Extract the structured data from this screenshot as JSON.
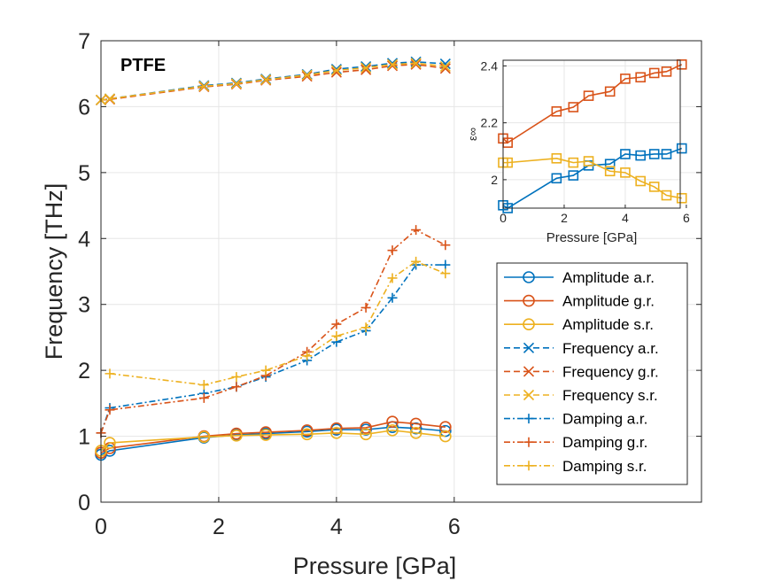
{
  "colors": {
    "series": [
      "#0072BD",
      "#D95319",
      "#EDB120"
    ],
    "grid": "#e6e6e6",
    "axis": "#262626"
  },
  "chart_data": [
    {
      "type": "line",
      "title": "PTFE",
      "xlabel": "Pressure [GPa]",
      "ylabel": "Frequency [THz]",
      "xlim": [
        0,
        10.2
      ],
      "ylim": [
        0,
        7
      ],
      "xticks": [
        0,
        2,
        4,
        6
      ],
      "yticks": [
        0,
        1,
        2,
        3,
        4,
        5,
        6,
        7
      ],
      "grid": true,
      "legend_position": "bottom-right",
      "series": [
        {
          "name": "Amplitude a.r.",
          "color_index": 0,
          "style": "solid",
          "marker": "circle",
          "x": [
            0,
            0.15,
            1.75,
            2.3,
            2.8,
            3.5,
            4.0,
            4.5,
            4.95,
            5.35,
            5.85
          ],
          "y": [
            0.72,
            0.78,
            0.98,
            1.02,
            1.04,
            1.07,
            1.1,
            1.1,
            1.14,
            1.12,
            1.08
          ]
        },
        {
          "name": "Amplitude g.r.",
          "color_index": 1,
          "style": "solid",
          "marker": "circle",
          "x": [
            0,
            0.15,
            1.75,
            2.3,
            2.8,
            3.5,
            4.0,
            4.5,
            4.95,
            5.35,
            5.85
          ],
          "y": [
            0.75,
            0.82,
            1.0,
            1.04,
            1.06,
            1.09,
            1.12,
            1.13,
            1.22,
            1.19,
            1.14
          ]
        },
        {
          "name": "Amplitude s.r.",
          "color_index": 2,
          "style": "solid",
          "marker": "circle",
          "x": [
            0,
            0.15,
            1.75,
            2.3,
            2.8,
            3.5,
            4.0,
            4.5,
            4.95,
            5.35,
            5.85
          ],
          "y": [
            0.78,
            0.9,
            0.99,
            1.01,
            1.02,
            1.03,
            1.05,
            1.03,
            1.09,
            1.05,
            1.0
          ]
        },
        {
          "name": "Frequency a.r.",
          "color_index": 0,
          "style": "dashed",
          "marker": "x",
          "x": [
            0,
            0.15,
            1.75,
            2.3,
            2.8,
            3.5,
            4.0,
            4.5,
            4.95,
            5.35,
            5.85
          ],
          "y": [
            6.1,
            6.12,
            6.32,
            6.36,
            6.42,
            6.49,
            6.57,
            6.61,
            6.66,
            6.68,
            6.65
          ]
        },
        {
          "name": "Frequency g.r.",
          "color_index": 1,
          "style": "dashed",
          "marker": "x",
          "x": [
            0,
            0.15,
            1.75,
            2.3,
            2.8,
            3.5,
            4.0,
            4.5,
            4.95,
            5.35,
            5.85
          ],
          "y": [
            6.1,
            6.11,
            6.3,
            6.34,
            6.4,
            6.46,
            6.52,
            6.56,
            6.62,
            6.64,
            6.58
          ]
        },
        {
          "name": "Frequency s.r.",
          "color_index": 2,
          "style": "dashed",
          "marker": "x",
          "x": [
            0,
            0.15,
            1.75,
            2.3,
            2.8,
            3.5,
            4.0,
            4.5,
            4.95,
            5.35,
            5.85
          ],
          "y": [
            6.1,
            6.12,
            6.31,
            6.35,
            6.41,
            6.48,
            6.55,
            6.59,
            6.64,
            6.66,
            6.61
          ]
        },
        {
          "name": "Damping a.r.",
          "color_index": 0,
          "style": "dashdot",
          "marker": "plus",
          "x": [
            0,
            0.15,
            1.75,
            2.3,
            2.8,
            3.5,
            4.0,
            4.5,
            4.95,
            5.35,
            5.85
          ],
          "y": [
            1.05,
            1.43,
            1.65,
            1.75,
            1.9,
            2.15,
            2.43,
            2.6,
            3.1,
            3.6,
            3.6
          ]
        },
        {
          "name": "Damping g.r.",
          "color_index": 1,
          "style": "dashdot",
          "marker": "plus",
          "x": [
            0,
            0.15,
            1.75,
            2.3,
            2.8,
            3.5,
            4.0,
            4.5,
            4.95,
            5.35,
            5.85
          ],
          "y": [
            1.05,
            1.4,
            1.58,
            1.75,
            1.92,
            2.28,
            2.7,
            2.95,
            3.82,
            4.13,
            3.9
          ]
        },
        {
          "name": "Damping s.r.",
          "color_index": 2,
          "style": "dashdot",
          "marker": "plus",
          "x": [
            0.15,
            1.75,
            2.3,
            2.8,
            3.5,
            4.0,
            4.5,
            4.95,
            5.35,
            5.85
          ],
          "y": [
            1.95,
            1.78,
            1.9,
            2.0,
            2.22,
            2.52,
            2.65,
            3.4,
            3.65,
            3.47
          ]
        }
      ]
    },
    {
      "type": "line",
      "title": "",
      "xlabel": "Pressure [GPa]",
      "ylabel": "ε∞",
      "xlim": [
        0,
        5.8
      ],
      "ylim": [
        1.9,
        2.42
      ],
      "xticks": [
        0,
        2,
        4,
        6
      ],
      "yticks": [
        2,
        2.2,
        2.4
      ],
      "ytick_labels": [
        "2",
        "2.2",
        "2.4"
      ],
      "grid": true,
      "series": [
        {
          "name": "a.r.",
          "color_index": 0,
          "style": "solid",
          "marker": "square",
          "x": [
            0,
            0.15,
            1.75,
            2.3,
            2.8,
            3.5,
            4.0,
            4.5,
            4.95,
            5.35,
            5.85
          ],
          "y": [
            1.91,
            1.9,
            2.005,
            2.015,
            2.05,
            2.055,
            2.09,
            2.085,
            2.09,
            2.09,
            2.11
          ]
        },
        {
          "name": "g.r.",
          "color_index": 1,
          "style": "solid",
          "marker": "square",
          "x": [
            0,
            0.15,
            1.75,
            2.3,
            2.8,
            3.5,
            4.0,
            4.5,
            4.95,
            5.35,
            5.85
          ],
          "y": [
            2.145,
            2.13,
            2.24,
            2.255,
            2.295,
            2.31,
            2.355,
            2.36,
            2.375,
            2.38,
            2.405
          ]
        },
        {
          "name": "s.r.",
          "color_index": 2,
          "style": "solid",
          "marker": "square",
          "x": [
            0,
            0.15,
            1.75,
            2.3,
            2.8,
            3.5,
            4.0,
            4.5,
            4.95,
            5.35,
            5.85
          ],
          "y": [
            2.06,
            2.06,
            2.075,
            2.06,
            2.065,
            2.03,
            2.025,
            1.995,
            1.975,
            1.945,
            1.935
          ]
        }
      ]
    }
  ]
}
